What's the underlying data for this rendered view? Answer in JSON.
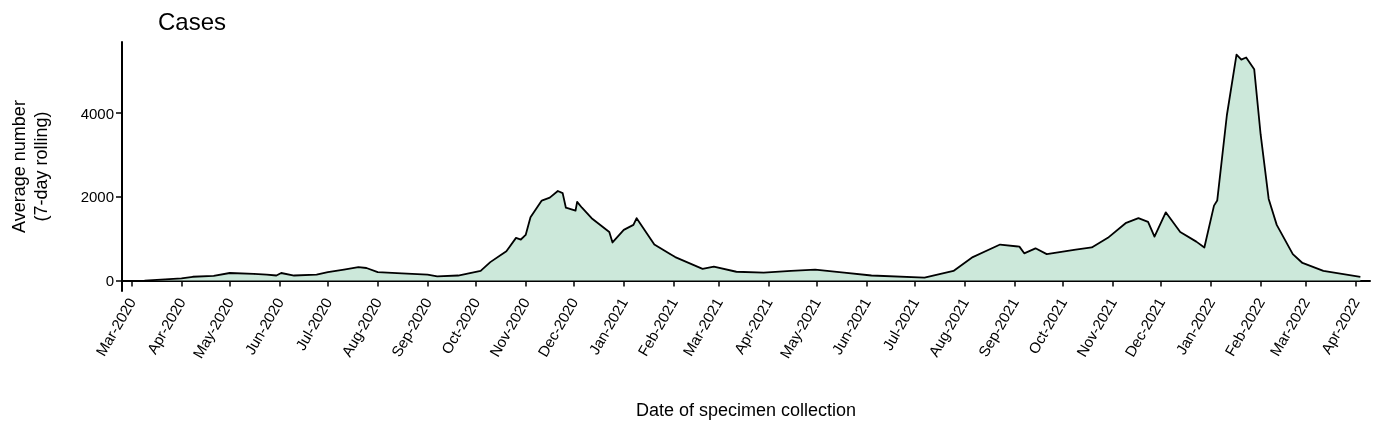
{
  "chart_data": {
    "type": "area",
    "title": "Cases",
    "xlabel": "Date of specimen collection",
    "ylabel": "Average number\n(7-day rolling)",
    "x": [
      "2020-03-09",
      "2020-04-01",
      "2020-04-08",
      "2020-04-21",
      "2020-05-01",
      "2020-05-16",
      "2020-05-24",
      "2020-05-30",
      "2020-06-02",
      "2020-06-10",
      "2020-06-24",
      "2020-07-01",
      "2020-07-11",
      "2020-07-20",
      "2020-07-25",
      "2020-08-01",
      "2020-08-16",
      "2020-09-01",
      "2020-09-07",
      "2020-09-20",
      "2020-10-04",
      "2020-10-10",
      "2020-10-20",
      "2020-10-26",
      "2020-10-29",
      "2020-11-01",
      "2020-11-04",
      "2020-11-11",
      "2020-11-16",
      "2020-11-21",
      "2020-11-24",
      "2020-11-26",
      "2020-12-02",
      "2020-12-03",
      "2020-12-06",
      "2020-12-12",
      "2020-12-23",
      "2020-12-25",
      "2021-01-01",
      "2021-01-07",
      "2021-01-09",
      "2021-01-20",
      "2021-02-02",
      "2021-02-19",
      "2021-02-26",
      "2021-03-12",
      "2021-03-29",
      "2021-04-15",
      "2021-04-30",
      "2021-05-18",
      "2021-06-04",
      "2021-07-07",
      "2021-07-25",
      "2021-08-06",
      "2021-08-23",
      "2021-09-04",
      "2021-09-07",
      "2021-09-14",
      "2021-09-21",
      "2021-10-09",
      "2021-10-19",
      "2021-10-29",
      "2021-11-09",
      "2021-11-17",
      "2021-11-23",
      "2021-11-27",
      "2021-12-04",
      "2021-12-13",
      "2021-12-23",
      "2021-12-28",
      "2022-01-03",
      "2022-01-05",
      "2022-01-11",
      "2022-01-17",
      "2022-01-20",
      "2022-01-23",
      "2022-01-28",
      "2022-02-01",
      "2022-02-06",
      "2022-02-11",
      "2022-02-21",
      "2022-02-27",
      "2022-03-12",
      "2022-04-04"
    ],
    "series": [
      {
        "color": "#cce8da",
        "values": [
          0,
          50,
          90,
          110,
          180,
          160,
          140,
          120,
          180,
          120,
          140,
          200,
          260,
          320,
          300,
          200,
          170,
          140,
          100,
          120,
          230,
          440,
          700,
          1020,
          980,
          1090,
          1510,
          1910,
          1980,
          2140,
          2090,
          1740,
          1670,
          1880,
          1740,
          1490,
          1160,
          910,
          1210,
          1330,
          1490,
          860,
          560,
          280,
          330,
          210,
          190,
          230,
          260,
          190,
          120,
          70,
          230,
          560,
          860,
          810,
          650,
          770,
          630,
          740,
          790,
          1020,
          1370,
          1490,
          1400,
          1050,
          1630,
          1160,
          930,
          790,
          1790,
          1910,
          3950,
          5400,
          5280,
          5330,
          5050,
          3490,
          1950,
          1330,
          630,
          420,
          230,
          90
        ]
      }
    ],
    "xlim": [
      "2020-02-24",
      "2022-04-10"
    ],
    "xticks": [
      {
        "value": "2020-03-01",
        "label": "Mar-2020"
      },
      {
        "value": "2020-04-01",
        "label": "Apr-2020"
      },
      {
        "value": "2020-05-01",
        "label": "May-2020"
      },
      {
        "value": "2020-06-01",
        "label": "Jun-2020"
      },
      {
        "value": "2020-07-01",
        "label": "Jul-2020"
      },
      {
        "value": "2020-08-01",
        "label": "Aug-2020"
      },
      {
        "value": "2020-09-01",
        "label": "Sep-2020"
      },
      {
        "value": "2020-10-01",
        "label": "Oct-2020"
      },
      {
        "value": "2020-11-01",
        "label": "Nov-2020"
      },
      {
        "value": "2020-12-01",
        "label": "Dec-2020"
      },
      {
        "value": "2021-01-01",
        "label": "Jan-2021"
      },
      {
        "value": "2021-02-01",
        "label": "Feb-2021"
      },
      {
        "value": "2021-03-01",
        "label": "Mar-2021"
      },
      {
        "value": "2021-04-01",
        "label": "Apr-2021"
      },
      {
        "value": "2021-05-01",
        "label": "May-2021"
      },
      {
        "value": "2021-06-01",
        "label": "Jun-2021"
      },
      {
        "value": "2021-07-01",
        "label": "Jul-2021"
      },
      {
        "value": "2021-08-01",
        "label": "Aug-2021"
      },
      {
        "value": "2021-09-01",
        "label": "Sep-2021"
      },
      {
        "value": "2021-10-01",
        "label": "Oct-2021"
      },
      {
        "value": "2021-11-01",
        "label": "Nov-2021"
      },
      {
        "value": "2021-12-01",
        "label": "Dec-2021"
      },
      {
        "value": "2022-01-01",
        "label": "Jan-2022"
      },
      {
        "value": "2022-02-01",
        "label": "Feb-2022"
      },
      {
        "value": "2022-03-01",
        "label": "Mar-2022"
      },
      {
        "value": "2022-04-01",
        "label": "Apr-2022"
      }
    ],
    "ylim": [
      -250,
      5700
    ],
    "yticks": [
      0,
      2000,
      4000
    ],
    "grid": false,
    "marker": "none",
    "line_style": "solid"
  }
}
